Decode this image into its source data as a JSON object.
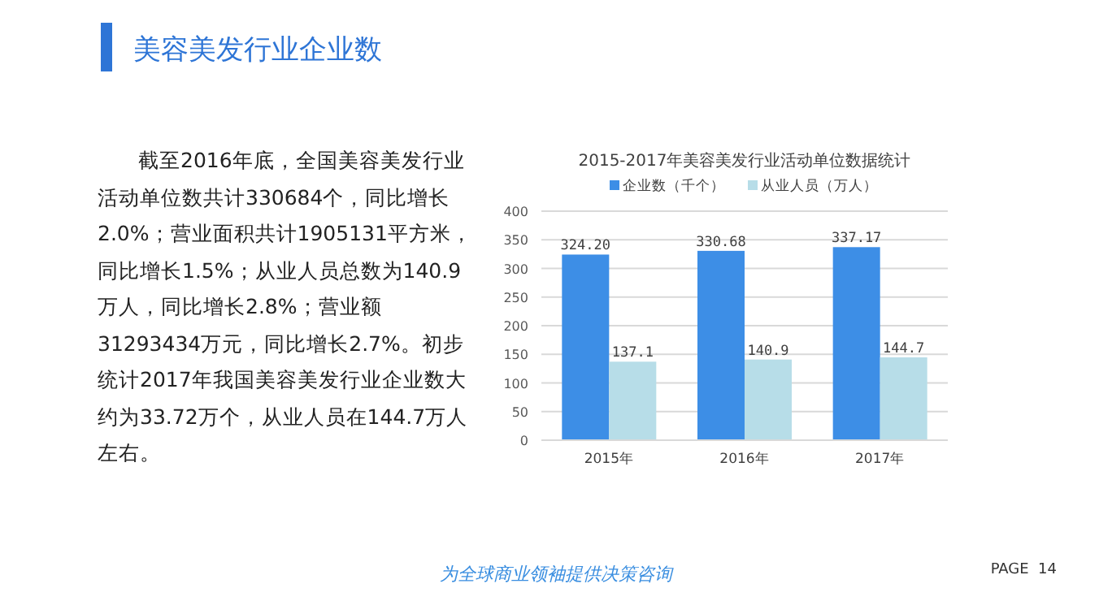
{
  "chart_data": [
    {
      "type": "other",
      "title": "美容美发行业企业数",
      "annotations": [
        "截至2016年底，全国美容美发行业活动单位数共计330684个，同比增长2.0%；营业面积共计1905131平方米，同比增长1.5%；从业人员总数为140.9万人，同比增长2.8%；营业额31293434万元，同比增长2.7%。初步统计2017年我国美容美发行业企业数大约为33.72万个，从业人员在144.7万人左右。",
        "为全球商业领袖提供决策咨询",
        "PAGE  14"
      ]
    },
    {
      "type": "bar",
      "title": "2015-2017年美容美发行业活动单位数据统计",
      "categories": [
        "2015年",
        "2016年",
        "2017年"
      ],
      "series": [
        {
          "name": "企业数（千个）",
          "color": "#3d8ee6",
          "values": [
            324.2,
            330.68,
            337.17
          ],
          "value_labels": [
            "324.20",
            "330.68",
            "337.17"
          ]
        },
        {
          "name": "从业人员（万人）",
          "color": "#b7dde8",
          "values": [
            137.1,
            140.9,
            144.7
          ],
          "value_labels": [
            "137.1",
            "140.9",
            "144.7"
          ]
        }
      ],
      "ylim": [
        0,
        400
      ],
      "yticks": [
        0,
        50,
        100,
        150,
        200,
        250,
        300,
        350,
        400
      ],
      "grid": "y",
      "legend": "top"
    }
  ]
}
